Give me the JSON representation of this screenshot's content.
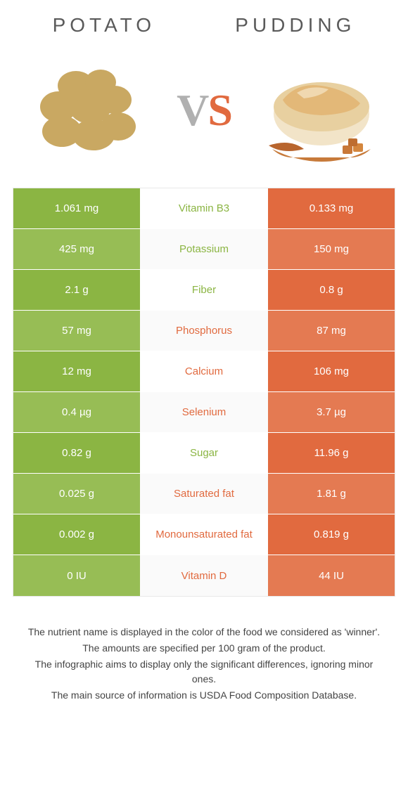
{
  "header": {
    "left": "Potato",
    "right": "Pudding"
  },
  "vs": {
    "v": "V",
    "s": "S"
  },
  "colors": {
    "left_main": "#8bb543",
    "left_alt": "#97bd55",
    "right_main": "#e16a3f",
    "right_alt": "#e47a52",
    "mid_left_text": "#8bb543",
    "mid_right_text": "#e16a3f",
    "mid_bg_even": "#fafafa",
    "mid_bg_odd": "#ffffff"
  },
  "rows": [
    {
      "left": "1.061 mg",
      "mid": "Vitamin B3",
      "right": "0.133 mg",
      "winner": "left"
    },
    {
      "left": "425 mg",
      "mid": "Potassium",
      "right": "150 mg",
      "winner": "left"
    },
    {
      "left": "2.1 g",
      "mid": "Fiber",
      "right": "0.8 g",
      "winner": "left"
    },
    {
      "left": "57 mg",
      "mid": "Phosphorus",
      "right": "87 mg",
      "winner": "right"
    },
    {
      "left": "12 mg",
      "mid": "Calcium",
      "right": "106 mg",
      "winner": "right"
    },
    {
      "left": "0.4 µg",
      "mid": "Selenium",
      "right": "3.7 µg",
      "winner": "right"
    },
    {
      "left": "0.82 g",
      "mid": "Sugar",
      "right": "11.96 g",
      "winner": "left"
    },
    {
      "left": "0.025 g",
      "mid": "Saturated fat",
      "right": "1.81 g",
      "winner": "right"
    },
    {
      "left": "0.002 g",
      "mid": "Monounsaturated fat",
      "right": "0.819 g",
      "winner": "right"
    },
    {
      "left": "0 IU",
      "mid": "Vitamin D",
      "right": "44 IU",
      "winner": "right"
    }
  ],
  "footer": [
    "The nutrient name is displayed in the color of the food we considered as 'winner'.",
    "The amounts are specified per 100 gram of the product.",
    "The infographic aims to display only the significant differences, ignoring minor ones.",
    "The main source of information is USDA Food Composition Database."
  ]
}
